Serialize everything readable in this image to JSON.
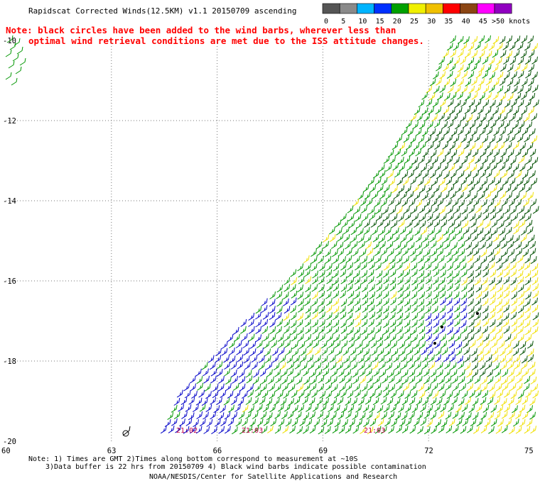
{
  "header": {
    "title": "Rapidscat Corrected Winds(12.5KM) v1.1 20150709 ascending"
  },
  "note": {
    "line1": "Note: black circles have been added to the wind barbs, wherever less than",
    "line2": "optimal wind retrieval conditions are met due to the ISS attitude changes."
  },
  "colorbar": {
    "unit": ">50 knots",
    "ticks": [
      "0",
      "5",
      "10",
      "15",
      "20",
      "25",
      "30",
      "35",
      "40",
      "45"
    ],
    "colors": [
      "#555555",
      "#8a8a8a",
      "#00b4ff",
      "#0030ff",
      "#00a000",
      "#f0f000",
      "#f0c000",
      "#ff0000",
      "#8b4513",
      "#ff00ff",
      "#9000c0"
    ]
  },
  "map": {
    "lon_labels": [
      "60",
      "63",
      "66",
      "69",
      "72",
      "75"
    ],
    "lat_labels": [
      "-10",
      "-12",
      "-14",
      "-16",
      "-18",
      "-20"
    ],
    "times": [
      "21:02",
      "21:03",
      "21:03"
    ],
    "speed_colors": {
      "blue": "#0000c8",
      "green": "#009600",
      "darkgreen": "#005000",
      "yellow": "#f0e000",
      "black": "#000000"
    }
  },
  "footer": {
    "line1": "Note: 1) Times are GMT 2)Times along bottom correspond to measurement at ~10S",
    "line2": "3)Data buffer is 22 hrs from 20150709 4) Black wind barbs indicate possible contamination",
    "line3": "NOAA/NESDIS/Center for Satellite Applications and Research"
  }
}
